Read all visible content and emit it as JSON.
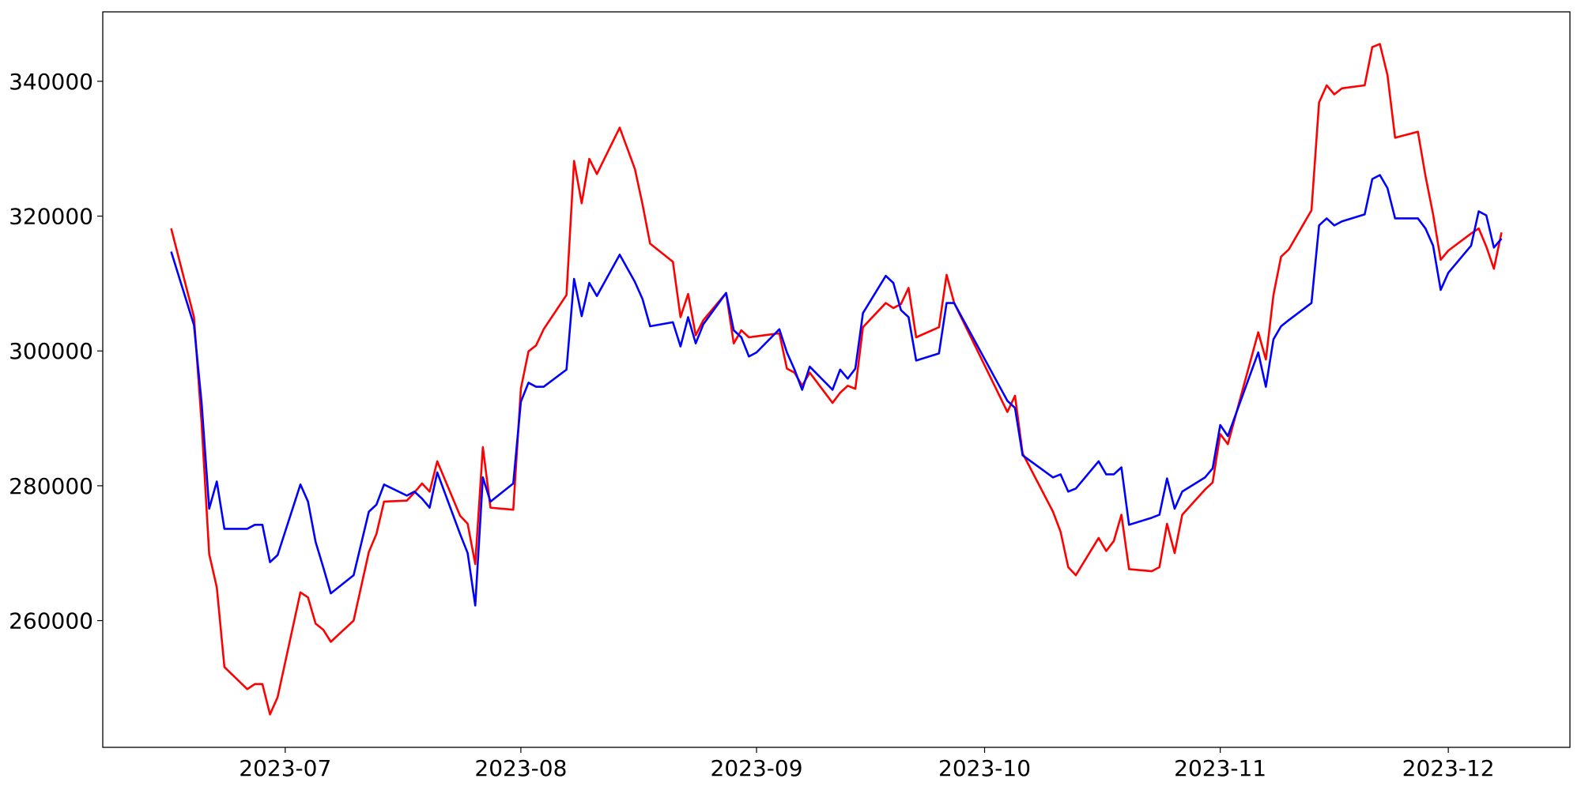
{
  "chart_data": {
    "type": "line",
    "x": [
      "2023-06-16",
      "2023-06-19",
      "2023-06-20",
      "2023-06-21",
      "2023-06-22",
      "2023-06-23",
      "2023-06-26",
      "2023-06-27",
      "2023-06-28",
      "2023-06-29",
      "2023-06-30",
      "2023-07-03",
      "2023-07-04",
      "2023-07-05",
      "2023-07-06",
      "2023-07-07",
      "2023-07-10",
      "2023-07-12",
      "2023-07-13",
      "2023-07-14",
      "2023-07-17",
      "2023-07-18",
      "2023-07-19",
      "2023-07-20",
      "2023-07-21",
      "2023-07-24",
      "2023-07-25",
      "2023-07-26",
      "2023-07-27",
      "2023-07-28",
      "2023-07-31",
      "2023-08-01",
      "2023-08-02",
      "2023-08-03",
      "2023-08-04",
      "2023-08-07",
      "2023-08-08",
      "2023-08-09",
      "2023-08-10",
      "2023-08-11",
      "2023-08-14",
      "2023-08-16",
      "2023-08-17",
      "2023-08-18",
      "2023-08-21",
      "2023-08-22",
      "2023-08-23",
      "2023-08-24",
      "2023-08-25",
      "2023-08-28",
      "2023-08-29",
      "2023-08-30",
      "2023-08-31",
      "2023-09-01",
      "2023-09-04",
      "2023-09-05",
      "2023-09-06",
      "2023-09-07",
      "2023-09-08",
      "2023-09-11",
      "2023-09-12",
      "2023-09-13",
      "2023-09-14",
      "2023-09-15",
      "2023-09-18",
      "2023-09-19",
      "2023-09-20",
      "2023-09-21",
      "2023-09-22",
      "2023-09-25",
      "2023-09-26",
      "2023-09-27",
      "2023-10-04",
      "2023-10-05",
      "2023-10-06",
      "2023-10-10",
      "2023-10-11",
      "2023-10-12",
      "2023-10-13",
      "2023-10-16",
      "2023-10-17",
      "2023-10-18",
      "2023-10-19",
      "2023-10-20",
      "2023-10-23",
      "2023-10-24",
      "2023-10-25",
      "2023-10-26",
      "2023-10-27",
      "2023-10-30",
      "2023-10-31",
      "2023-11-01",
      "2023-11-02",
      "2023-11-06",
      "2023-11-07",
      "2023-11-08",
      "2023-11-09",
      "2023-11-10",
      "2023-11-13",
      "2023-11-14",
      "2023-11-15",
      "2023-11-16",
      "2023-11-17",
      "2023-11-20",
      "2023-11-21",
      "2023-11-22",
      "2023-11-23",
      "2023-11-24",
      "2023-11-27",
      "2023-11-28",
      "2023-11-29",
      "2023-11-30",
      "2023-12-01",
      "2023-12-04",
      "2023-12-05",
      "2023-12-06",
      "2023-12-07",
      "2023-12-08"
    ],
    "series": [
      {
        "color": "#ff0000",
        "values": [
          318170,
          305010,
          289300,
          269870,
          264930,
          253120,
          249830,
          250580,
          250580,
          246090,
          248640,
          264190,
          263440,
          259550,
          258650,
          256860,
          260000,
          270170,
          272860,
          277650,
          277800,
          279000,
          280340,
          279140,
          283630,
          275560,
          274360,
          268380,
          285720,
          276750,
          276450,
          294390,
          299930,
          300820,
          303220,
          308300,
          328190,
          321910,
          328490,
          326240,
          333120,
          326990,
          321760,
          315920,
          313230,
          305010,
          308450,
          302320,
          304560,
          308600,
          301120,
          303070,
          302020,
          302170,
          302620,
          297380,
          296780,
          294840,
          296780,
          292300,
          293800,
          294840,
          294390,
          303520,
          307110,
          306360,
          306960,
          309350,
          302020,
          303520,
          311290,
          307110,
          290950,
          293350,
          284820,
          276150,
          273160,
          267930,
          266730,
          272260,
          270320,
          271810,
          275700,
          267630,
          267330,
          267930,
          274360,
          270020,
          275700,
          279440,
          280490,
          287670,
          286170,
          302770,
          298730,
          308300,
          313980,
          315030,
          320860,
          336860,
          339400,
          338060,
          338950,
          339400,
          345080,
          345530,
          340900,
          331630,
          332520,
          325940,
          320260,
          313530,
          314880,
          317420,
          318170,
          315480,
          312190,
          317580
        ]
      },
      {
        "color": "#0000ff",
        "values": [
          314730,
          303820,
          292300,
          276600,
          280640,
          273610,
          273610,
          274210,
          274210,
          268670,
          269720,
          280190,
          277650,
          271670,
          267930,
          264040,
          266730,
          276150,
          277200,
          280190,
          278540,
          279140,
          278090,
          276750,
          281990,
          272860,
          270020,
          262240,
          281240,
          277650,
          280340,
          292450,
          295290,
          294690,
          294690,
          297230,
          310690,
          305160,
          310090,
          308150,
          314280,
          310240,
          307700,
          303660,
          304260,
          300670,
          305010,
          301120,
          303960,
          308600,
          303070,
          302020,
          299180,
          299780,
          303220,
          299780,
          297230,
          294240,
          297680,
          294240,
          297230,
          295890,
          297380,
          305610,
          311140,
          310090,
          306060,
          305010,
          298580,
          299630,
          307110,
          307110,
          292600,
          291550,
          284520,
          281240,
          281690,
          279140,
          279590,
          283630,
          281690,
          281690,
          282730,
          274210,
          275260,
          275700,
          281090,
          276600,
          279140,
          281240,
          282580,
          289010,
          287370,
          299780,
          294690,
          301720,
          303660,
          304560,
          307110,
          318620,
          319660,
          318620,
          319220,
          320260,
          325500,
          326090,
          324150,
          319660,
          319660,
          318170,
          315620,
          309050,
          311590,
          315620,
          320710,
          320110,
          315330,
          316670
        ]
      }
    ],
    "xlim": [
      "2023-06-07",
      "2023-12-17"
    ],
    "xticks": [
      {
        "value": "2023-07-01",
        "label": "2023-07"
      },
      {
        "value": "2023-08-01",
        "label": "2023-08"
      },
      {
        "value": "2023-09-01",
        "label": "2023-09"
      },
      {
        "value": "2023-10-01",
        "label": "2023-10"
      },
      {
        "value": "2023-11-01",
        "label": "2023-11"
      },
      {
        "value": "2023-12-01",
        "label": "2023-12"
      }
    ],
    "ylim": [
      241200,
      350300
    ],
    "yticks": [
      260000,
      280000,
      300000,
      320000,
      340000
    ]
  }
}
